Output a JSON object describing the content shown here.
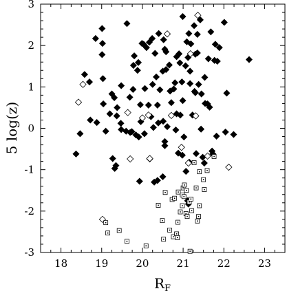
{
  "chart_data": {
    "type": "scatter",
    "xlabel": "R",
    "xlabel_sub": "F",
    "ylabel": "5 log(z)",
    "xlim": [
      17.5,
      23.5
    ],
    "ylim": [
      -3,
      3
    ],
    "x_ticks": [
      18,
      19,
      20,
      21,
      22,
      23
    ],
    "y_ticks": [
      -3,
      -2,
      -1,
      0,
      1,
      2,
      3
    ],
    "grid": false,
    "series": [
      {
        "marker": "filled-diamond",
        "points": [
          [
            18.37,
            -0.62
          ],
          [
            18.47,
            -0.13
          ],
          [
            18.58,
            1.3
          ],
          [
            18.7,
            1.12
          ],
          [
            18.72,
            0.2
          ],
          [
            18.85,
            2.17
          ],
          [
            18.88,
            0.14
          ],
          [
            19.01,
            2.41
          ],
          [
            19.01,
            1.78
          ],
          [
            19.02,
            2.05
          ],
          [
            19.03,
            1.2
          ],
          [
            19.04,
            0.59
          ],
          [
            19.1,
            -0.07
          ],
          [
            19.2,
            0.35
          ],
          [
            19.25,
            0.83
          ],
          [
            19.27,
            -0.73
          ],
          [
            19.31,
            0.74
          ],
          [
            19.32,
            -0.97
          ],
          [
            19.35,
            -0.9
          ],
          [
            19.37,
            0.3
          ],
          [
            19.38,
            0.5
          ],
          [
            19.47,
            0.12
          ],
          [
            19.48,
            -0.03
          ],
          [
            19.48,
            1.03
          ],
          [
            19.6,
            -0.07
          ],
          [
            19.62,
            2.53
          ],
          [
            19.69,
            0.75
          ],
          [
            19.7,
            -0.1
          ],
          [
            19.74,
            -0.08
          ],
          [
            19.77,
            0.94
          ],
          [
            19.78,
            1.52
          ],
          [
            19.8,
            1.75
          ],
          [
            19.84,
            -0.16
          ],
          [
            19.88,
            1.4
          ],
          [
            19.9,
            1.59
          ],
          [
            19.91,
            -0.21
          ],
          [
            19.93,
            -1.28
          ],
          [
            19.95,
            0.57
          ],
          [
            19.96,
            0.16
          ],
          [
            19.99,
            2.05
          ],
          [
            20.03,
            2.03
          ],
          [
            20.05,
            -0.13
          ],
          [
            20.06,
            0.96
          ],
          [
            20.1,
            1.95
          ],
          [
            20.15,
            0.56
          ],
          [
            20.17,
            2.08
          ],
          [
            20.18,
            -0.74
          ],
          [
            20.21,
            0.28
          ],
          [
            20.24,
            2.17
          ],
          [
            20.25,
            1.06
          ],
          [
            20.27,
            0.02
          ],
          [
            20.29,
            -1.3
          ],
          [
            20.31,
            1.81
          ],
          [
            20.34,
            1.24
          ],
          [
            20.37,
            -1.26
          ],
          [
            20.37,
            0.56
          ],
          [
            20.39,
            0.13
          ],
          [
            20.4,
            2.29
          ],
          [
            20.43,
            0.93
          ],
          [
            20.5,
            -1.17
          ],
          [
            20.5,
            1.38
          ],
          [
            20.51,
            0.17
          ],
          [
            20.52,
            2.14
          ],
          [
            20.55,
            1.91
          ],
          [
            20.55,
            -0.42
          ],
          [
            20.55,
            -0.32
          ],
          [
            20.58,
            1.85
          ],
          [
            20.58,
            1.42
          ],
          [
            20.61,
            0.04
          ],
          [
            20.66,
            1.53
          ],
          [
            20.68,
            0.9
          ],
          [
            20.71,
            0.62
          ],
          [
            20.77,
            0.95
          ],
          [
            20.8,
            1.1
          ],
          [
            20.82,
            -0.04
          ],
          [
            20.84,
            0.35
          ],
          [
            20.84,
            1.73
          ],
          [
            20.88,
            -0.6
          ],
          [
            20.9,
            1.8
          ],
          [
            20.92,
            1.58
          ],
          [
            20.93,
            0.32
          ],
          [
            20.97,
            1.12
          ],
          [
            20.98,
            -0.65
          ],
          [
            20.99,
            2.7
          ],
          [
            20.99,
            0.67
          ],
          [
            21.02,
            -0.21
          ],
          [
            21.06,
            1.51
          ],
          [
            21.07,
            -1.04
          ],
          [
            21.09,
            2.09
          ],
          [
            21.11,
            -1.75
          ],
          [
            21.12,
            1.71
          ],
          [
            21.13,
            -1.83
          ],
          [
            21.14,
            2.29
          ],
          [
            21.15,
            -0.82
          ],
          [
            21.17,
            1.38
          ],
          [
            21.17,
            1.08
          ],
          [
            21.19,
            2.04
          ],
          [
            21.23,
            0.32
          ],
          [
            21.27,
            2.48
          ],
          [
            21.28,
            0.89
          ],
          [
            21.3,
            1.79
          ],
          [
            21.3,
            0.86
          ],
          [
            21.32,
            -0.61
          ],
          [
            21.35,
            2.27
          ],
          [
            21.35,
            1.82
          ],
          [
            21.38,
            1.06
          ],
          [
            21.42,
            2.62
          ],
          [
            21.44,
            -0.02
          ],
          [
            21.45,
            0.83
          ],
          [
            21.48,
            -0.7
          ],
          [
            21.52,
            -0.84
          ],
          [
            21.53,
            1.23
          ],
          [
            21.54,
            0.6
          ],
          [
            21.6,
            0.59
          ],
          [
            21.62,
            1.68
          ],
          [
            21.65,
            0.51
          ],
          [
            21.68,
            2.33
          ],
          [
            21.71,
            -0.55
          ],
          [
            21.73,
            -0.62
          ],
          [
            21.77,
            1.64
          ],
          [
            21.79,
            2.03
          ],
          [
            21.82,
            -0.19
          ],
          [
            21.84,
            1.62
          ],
          [
            21.89,
            1.95
          ],
          [
            22.01,
            2.56
          ],
          [
            22.04,
            -0.09
          ],
          [
            22.07,
            0.85
          ],
          [
            22.24,
            -0.15
          ],
          [
            22.62,
            1.66
          ]
        ]
      },
      {
        "marker": "open-diamond",
        "points": [
          [
            18.43,
            0.63
          ],
          [
            18.54,
            1.06
          ],
          [
            19.02,
            -2.2
          ],
          [
            19.64,
            0.38
          ],
          [
            19.7,
            -0.74
          ],
          [
            20.0,
            0.25
          ],
          [
            20.15,
            0.32
          ],
          [
            20.18,
            -0.73
          ],
          [
            20.61,
            2.28
          ],
          [
            20.71,
            0.31
          ],
          [
            20.96,
            -0.46
          ],
          [
            21.13,
            -0.84
          ],
          [
            21.18,
            1.8
          ],
          [
            21.31,
            0.3
          ],
          [
            21.36,
            2.73
          ],
          [
            21.6,
            -0.67
          ],
          [
            22.12,
            -0.94
          ]
        ]
      },
      {
        "marker": "open-dotted-square",
        "points": [
          [
            19.1,
            -2.28
          ],
          [
            19.15,
            -2.53
          ],
          [
            19.43,
            -2.47
          ],
          [
            19.62,
            -2.73
          ],
          [
            20.09,
            -2.84
          ],
          [
            20.39,
            -1.86
          ],
          [
            20.49,
            -2.23
          ],
          [
            20.52,
            -2.68
          ],
          [
            20.56,
            -1.55
          ],
          [
            20.67,
            -2.46
          ],
          [
            20.73,
            -1.72
          ],
          [
            20.76,
            -2.62
          ],
          [
            20.79,
            -1.69
          ],
          [
            20.84,
            -2.55
          ],
          [
            20.86,
            -2.64
          ],
          [
            20.87,
            -2.27
          ],
          [
            20.88,
            -1.54
          ],
          [
            20.93,
            -2.02
          ],
          [
            20.98,
            -1.61
          ],
          [
            20.98,
            -1.87
          ],
          [
            21.0,
            -1.44
          ],
          [
            21.02,
            -1.65
          ],
          [
            21.03,
            -1.37
          ],
          [
            21.07,
            -2.06
          ],
          [
            21.08,
            -1.5
          ],
          [
            21.1,
            -2.13
          ],
          [
            21.15,
            -1.78
          ],
          [
            21.17,
            -2.97
          ],
          [
            21.19,
            -1.71
          ],
          [
            21.21,
            -1.99
          ],
          [
            21.27,
            -0.83
          ],
          [
            21.32,
            -1.44
          ],
          [
            21.35,
            -2.24
          ],
          [
            21.38,
            -2.13
          ],
          [
            21.4,
            -1.05
          ],
          [
            21.4,
            -1.87
          ],
          [
            21.5,
            -1.24
          ],
          [
            21.52,
            -1.48
          ],
          [
            21.59,
            -1.02
          ],
          [
            21.76,
            -0.68
          ]
        ]
      }
    ]
  }
}
